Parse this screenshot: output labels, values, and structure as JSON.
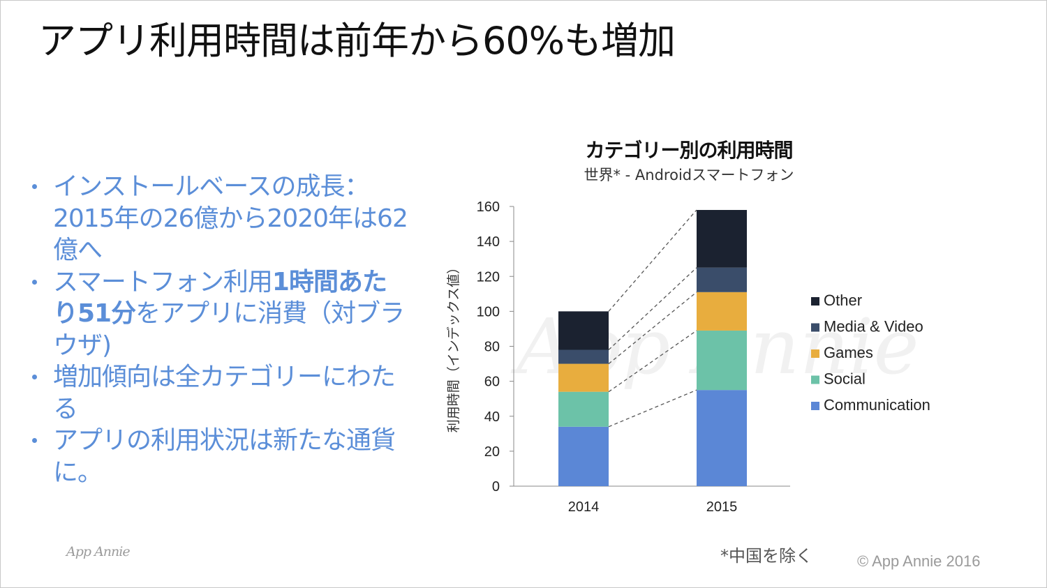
{
  "slide": {
    "title": "アプリ利用時間は前年から60%も増加",
    "logo_text": "App Annie",
    "footnote": "*中国を除く",
    "copyright": "© App Annie 2016"
  },
  "bullets": [
    {
      "text": "インストールベースの成長：2015年の26億から2020年は62億へ"
    },
    {
      "pre": "スマートフォン利用",
      "bold": "1時間あたり51分",
      "post": "をアプリに消費（対ブラウザ)"
    },
    {
      "text": "増加傾向は全カテゴリーにわたる"
    },
    {
      "text": "アプリの利用状況は新たな通貨に。"
    }
  ],
  "chart_data": {
    "type": "bar",
    "stacked": true,
    "title": "カテゴリー別の利用時間",
    "subtitle": "世界* - Androidスマートフォン",
    "ylabel": "利用時間（インデックス値）",
    "ylim": [
      0,
      160
    ],
    "yticks": [
      0,
      20,
      40,
      60,
      80,
      100,
      120,
      140,
      160
    ],
    "categories": [
      "2014",
      "2015"
    ],
    "series": [
      {
        "name": "Communication",
        "color": "#5b87d6",
        "values": [
          34,
          55
        ]
      },
      {
        "name": "Social",
        "color": "#6cc2a8",
        "values": [
          20,
          34
        ]
      },
      {
        "name": "Games",
        "color": "#e8ad3e",
        "values": [
          16,
          22
        ]
      },
      {
        "name": "Media & Video",
        "color": "#3a4d6a",
        "values": [
          8,
          14
        ]
      },
      {
        "name": "Other",
        "color": "#1b2230",
        "values": [
          22,
          33
        ]
      }
    ],
    "legend_order": [
      "Other",
      "Media & Video",
      "Games",
      "Social",
      "Communication"
    ],
    "connector_lines": true,
    "watermark": "App Annie"
  }
}
